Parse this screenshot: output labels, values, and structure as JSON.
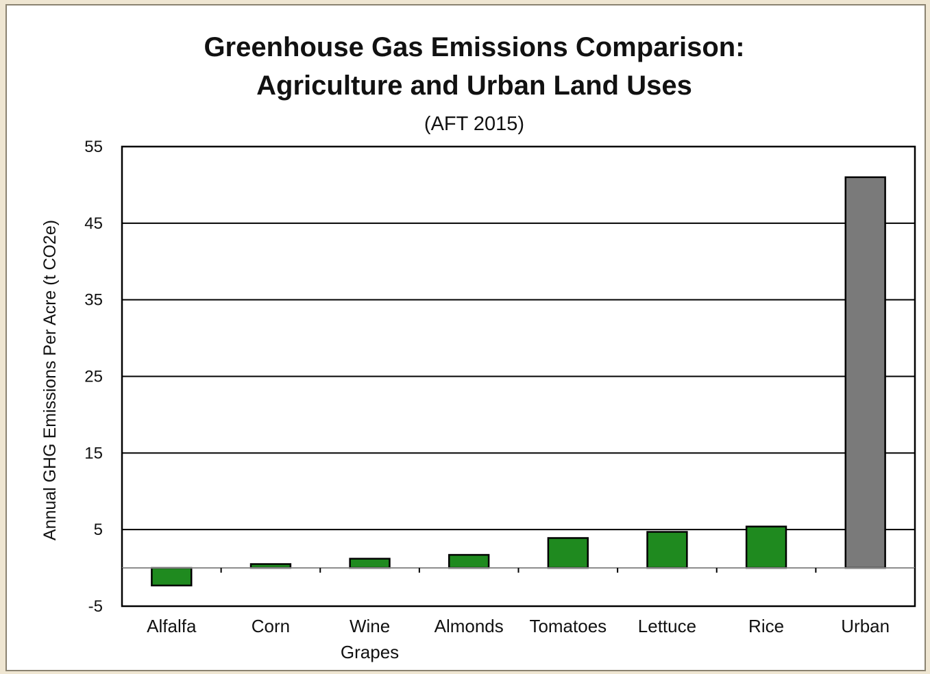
{
  "chart_data": {
    "type": "bar",
    "title": "Greenhouse Gas Emissions Comparison:",
    "title_line2": "Agriculture and Urban Land Uses",
    "subtitle": "(AFT 2015)",
    "xlabel": "",
    "ylabel": "Annual GHG Emissions Per Acre (t CO2e)",
    "ylim": [
      -5,
      55
    ],
    "yticks": [
      -5,
      5,
      15,
      25,
      35,
      45,
      55
    ],
    "grid": true,
    "categories": [
      [
        "Alfalfa"
      ],
      [
        "Corn"
      ],
      [
        "Wine",
        "Grapes"
      ],
      [
        "Almonds"
      ],
      [
        "Tomatoes"
      ],
      [
        "Lettuce"
      ],
      [
        "Rice"
      ],
      [
        "Urban"
      ]
    ],
    "values": [
      -2.3,
      0.5,
      1.2,
      1.7,
      3.9,
      4.7,
      5.4,
      51.0
    ],
    "colors": [
      "#1f8a1f",
      "#1f8a1f",
      "#1f8a1f",
      "#1f8a1f",
      "#1f8a1f",
      "#1f8a1f",
      "#1f8a1f",
      "#7a7a7a"
    ],
    "legend": "none"
  }
}
